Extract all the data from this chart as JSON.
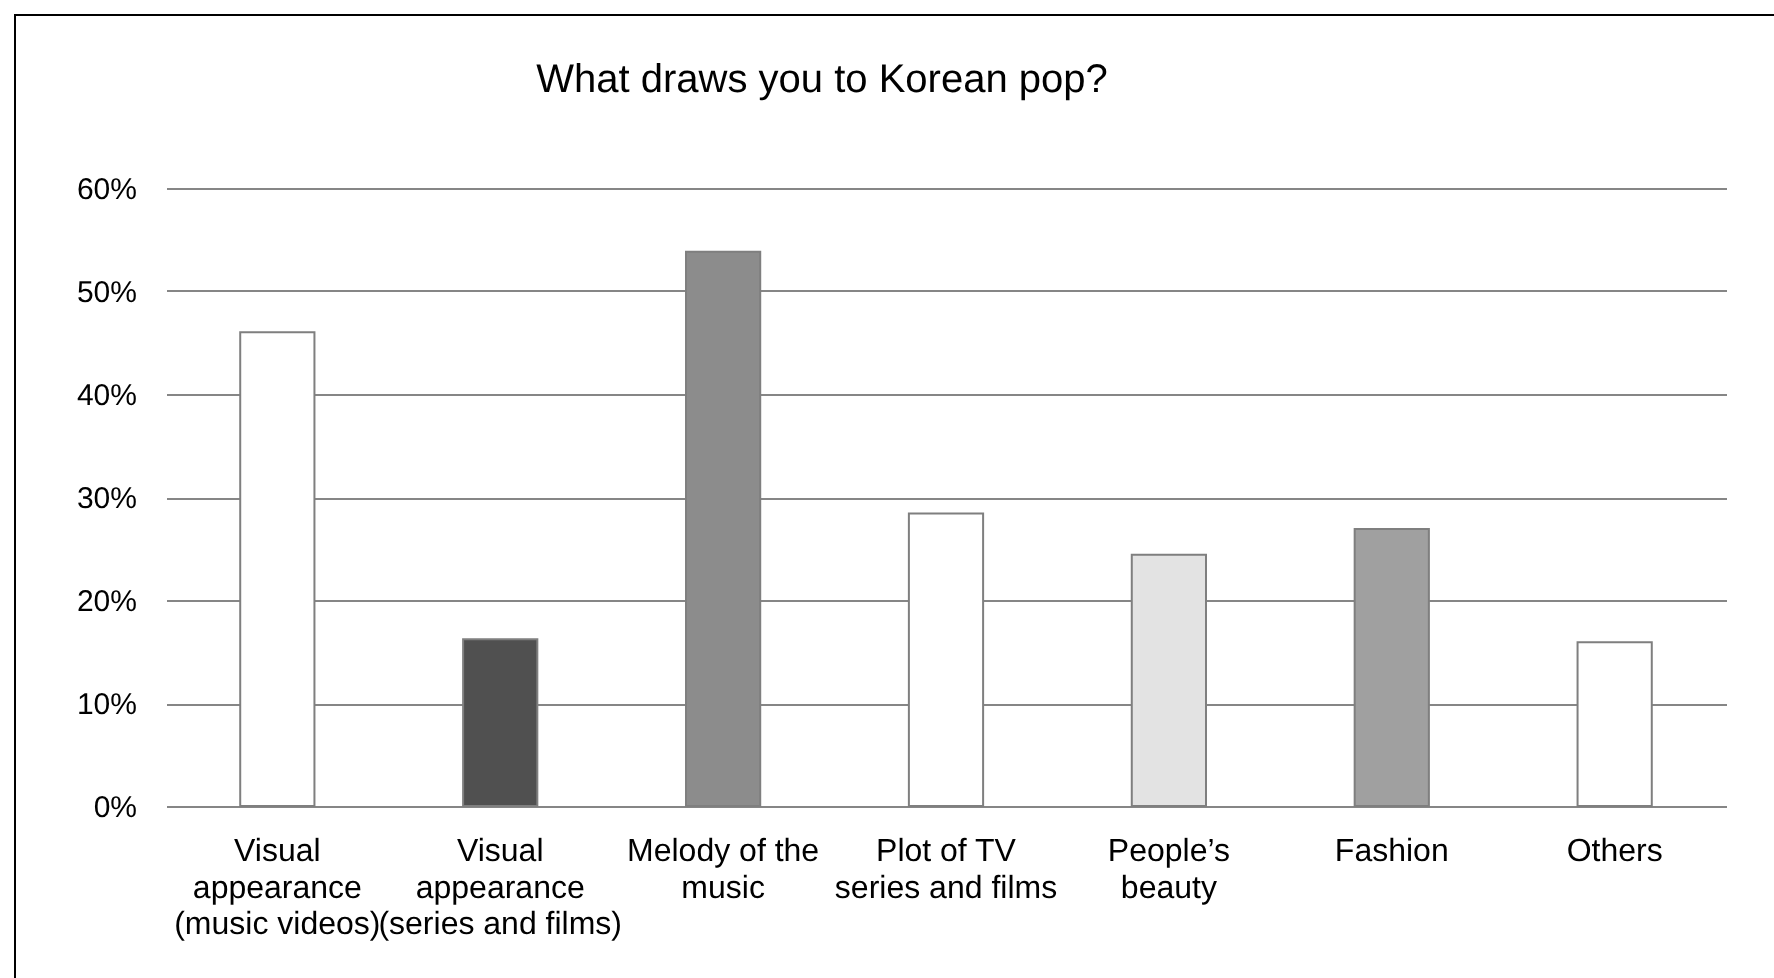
{
  "chart_data": {
    "type": "bar",
    "title": "What draws you to Korean pop?",
    "categories": [
      "Visual\nappearance\n(music videos)",
      "Visual\nappearance\n(series and films)",
      "Melody of the\nmusic",
      "Plot of TV\nseries and films",
      "People’s\nbeauty",
      "Fashion",
      "Others"
    ],
    "values": [
      46.0,
      16.2,
      53.8,
      28.4,
      24.4,
      26.9,
      15.9
    ],
    "colors": [
      "#ffffff",
      "#505050",
      "#8c8c8c",
      "#ffffff",
      "#e3e3e3",
      "#a0a0a0",
      "#ffffff"
    ],
    "ylim": [
      0,
      60
    ],
    "yticks": [
      {
        "value": 0,
        "label": "0%"
      },
      {
        "value": 10,
        "label": "10%"
      },
      {
        "value": 20,
        "label": "20%"
      },
      {
        "value": 30,
        "label": "30%"
      },
      {
        "value": 40,
        "label": "40%"
      },
      {
        "value": 50,
        "label": "50%"
      },
      {
        "value": 60,
        "label": "60%"
      }
    ],
    "grid": "y"
  }
}
